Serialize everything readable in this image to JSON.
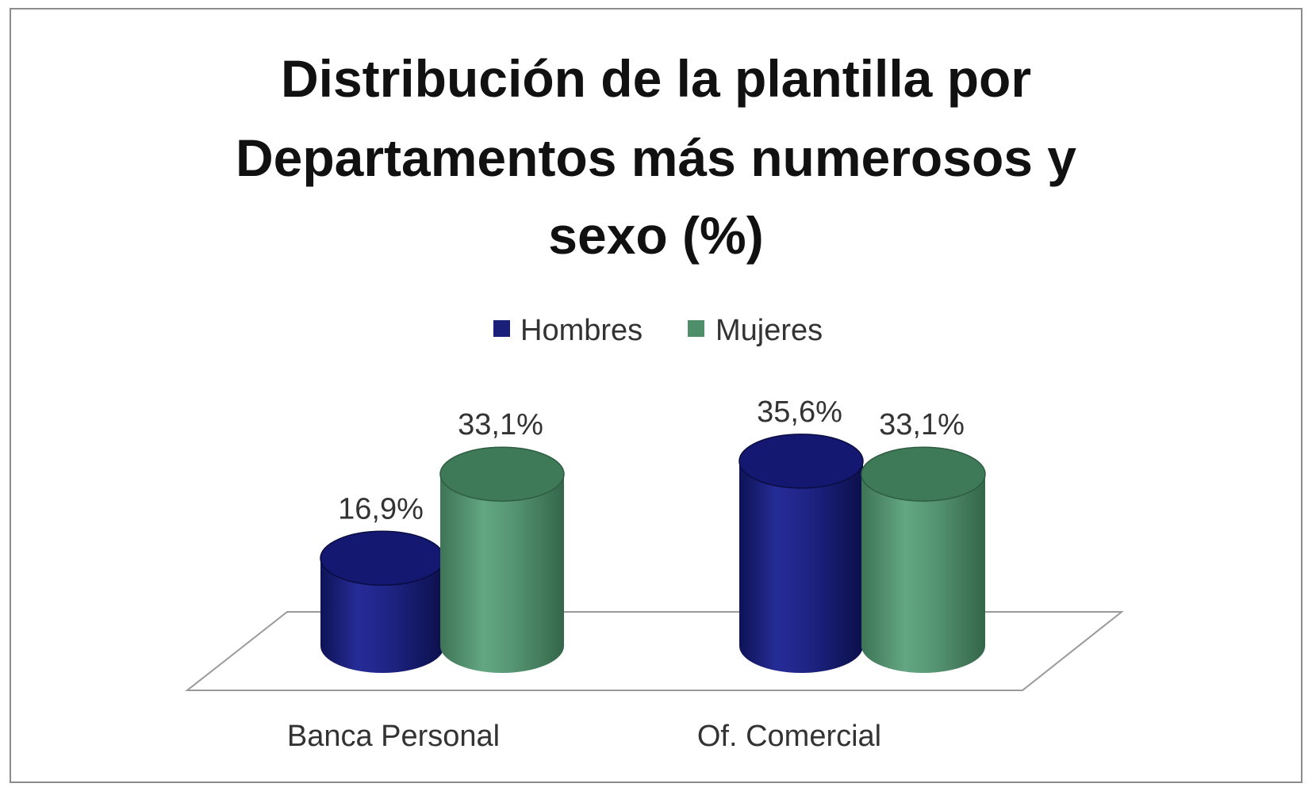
{
  "chart_data": {
    "type": "bar",
    "style": "3d-cylinder",
    "title_lines": [
      "Distribución de la plantilla por",
      "Departamentos más numerosos y",
      "sexo (%)"
    ],
    "categories": [
      "Banca Personal",
      "Of. Comercial"
    ],
    "series": [
      {
        "name": "Hombres",
        "color": "#1a1f7a",
        "values": [
          16.9,
          35.6
        ],
        "labels": [
          "16,9%",
          "35,6%"
        ]
      },
      {
        "name": "Mujeres",
        "color": "#4e8f6a",
        "values": [
          33.1,
          33.1
        ],
        "labels": [
          "33,1%",
          "33,1%"
        ]
      }
    ],
    "legend_position": "top",
    "grid": false,
    "ylim": [
      0,
      40
    ]
  }
}
